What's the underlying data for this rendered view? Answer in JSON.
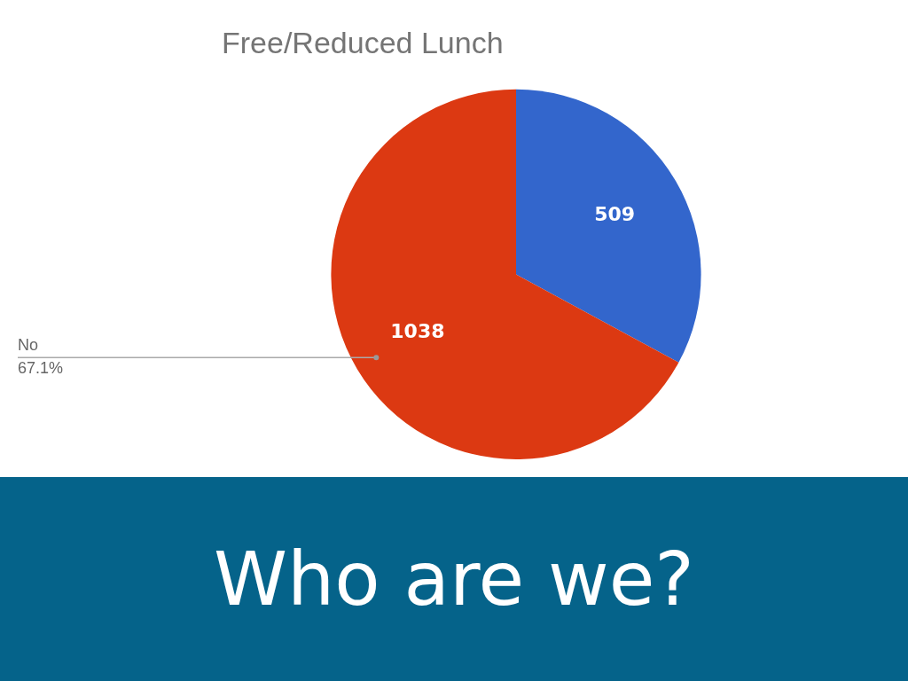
{
  "chart_data": {
    "type": "pie",
    "title": "Free/Reduced Lunch",
    "categories": [
      null,
      "No"
    ],
    "values": [
      509,
      1038
    ],
    "colors": [
      "#3366cc",
      "#dc3912"
    ],
    "data_labels": true,
    "legend": false,
    "annotations": [
      {
        "text": "67.1%",
        "x": "No"
      },
      "Who are we?"
    ]
  }
}
